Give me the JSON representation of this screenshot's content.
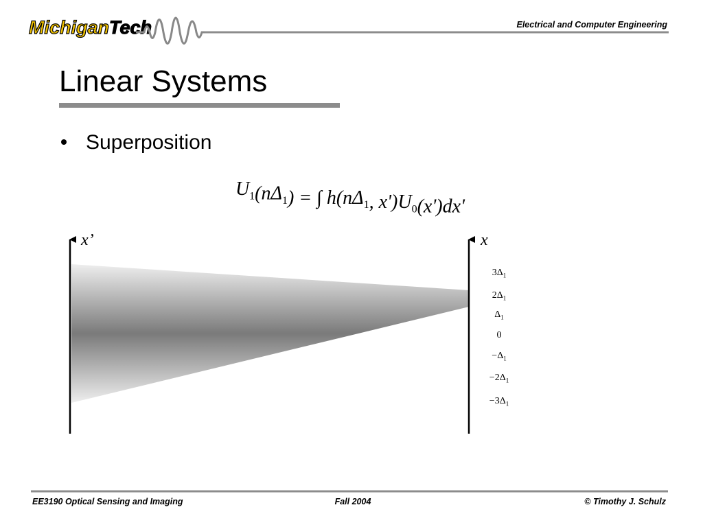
{
  "header": {
    "logo_main": "Michigan",
    "logo_accent": "Tech",
    "department": "Electrical and Computer Engineering"
  },
  "slide": {
    "title": "Linear Systems",
    "bullet": "Superposition",
    "equation": [
      {
        "text": "U",
        "sub": "1"
      },
      {
        "text": "(nΔ",
        "sub": "1"
      },
      {
        "text": ") = ∫ h(nΔ",
        "sub": "1"
      },
      {
        "text": ", x')U",
        "sub": "0"
      },
      {
        "text": "(x')dx'"
      }
    ],
    "diagram": {
      "left_axis_label": "x’",
      "right_axis_label": "x",
      "ticks": [
        {
          "text": "3Δ",
          "sub": "1"
        },
        {
          "text": "2Δ",
          "sub": "1"
        },
        {
          "text": "Δ",
          "sub": "1"
        },
        {
          "text": "0"
        },
        {
          "text": "−Δ",
          "sub": "1"
        },
        {
          "text": "−2Δ",
          "sub": "1"
        },
        {
          "text": "−3Δ",
          "sub": "1"
        }
      ]
    }
  },
  "footer": {
    "course": "EE3190 Optical Sensing and Imaging",
    "term": "Fall 2004",
    "author": "© Timothy J. Schulz"
  }
}
